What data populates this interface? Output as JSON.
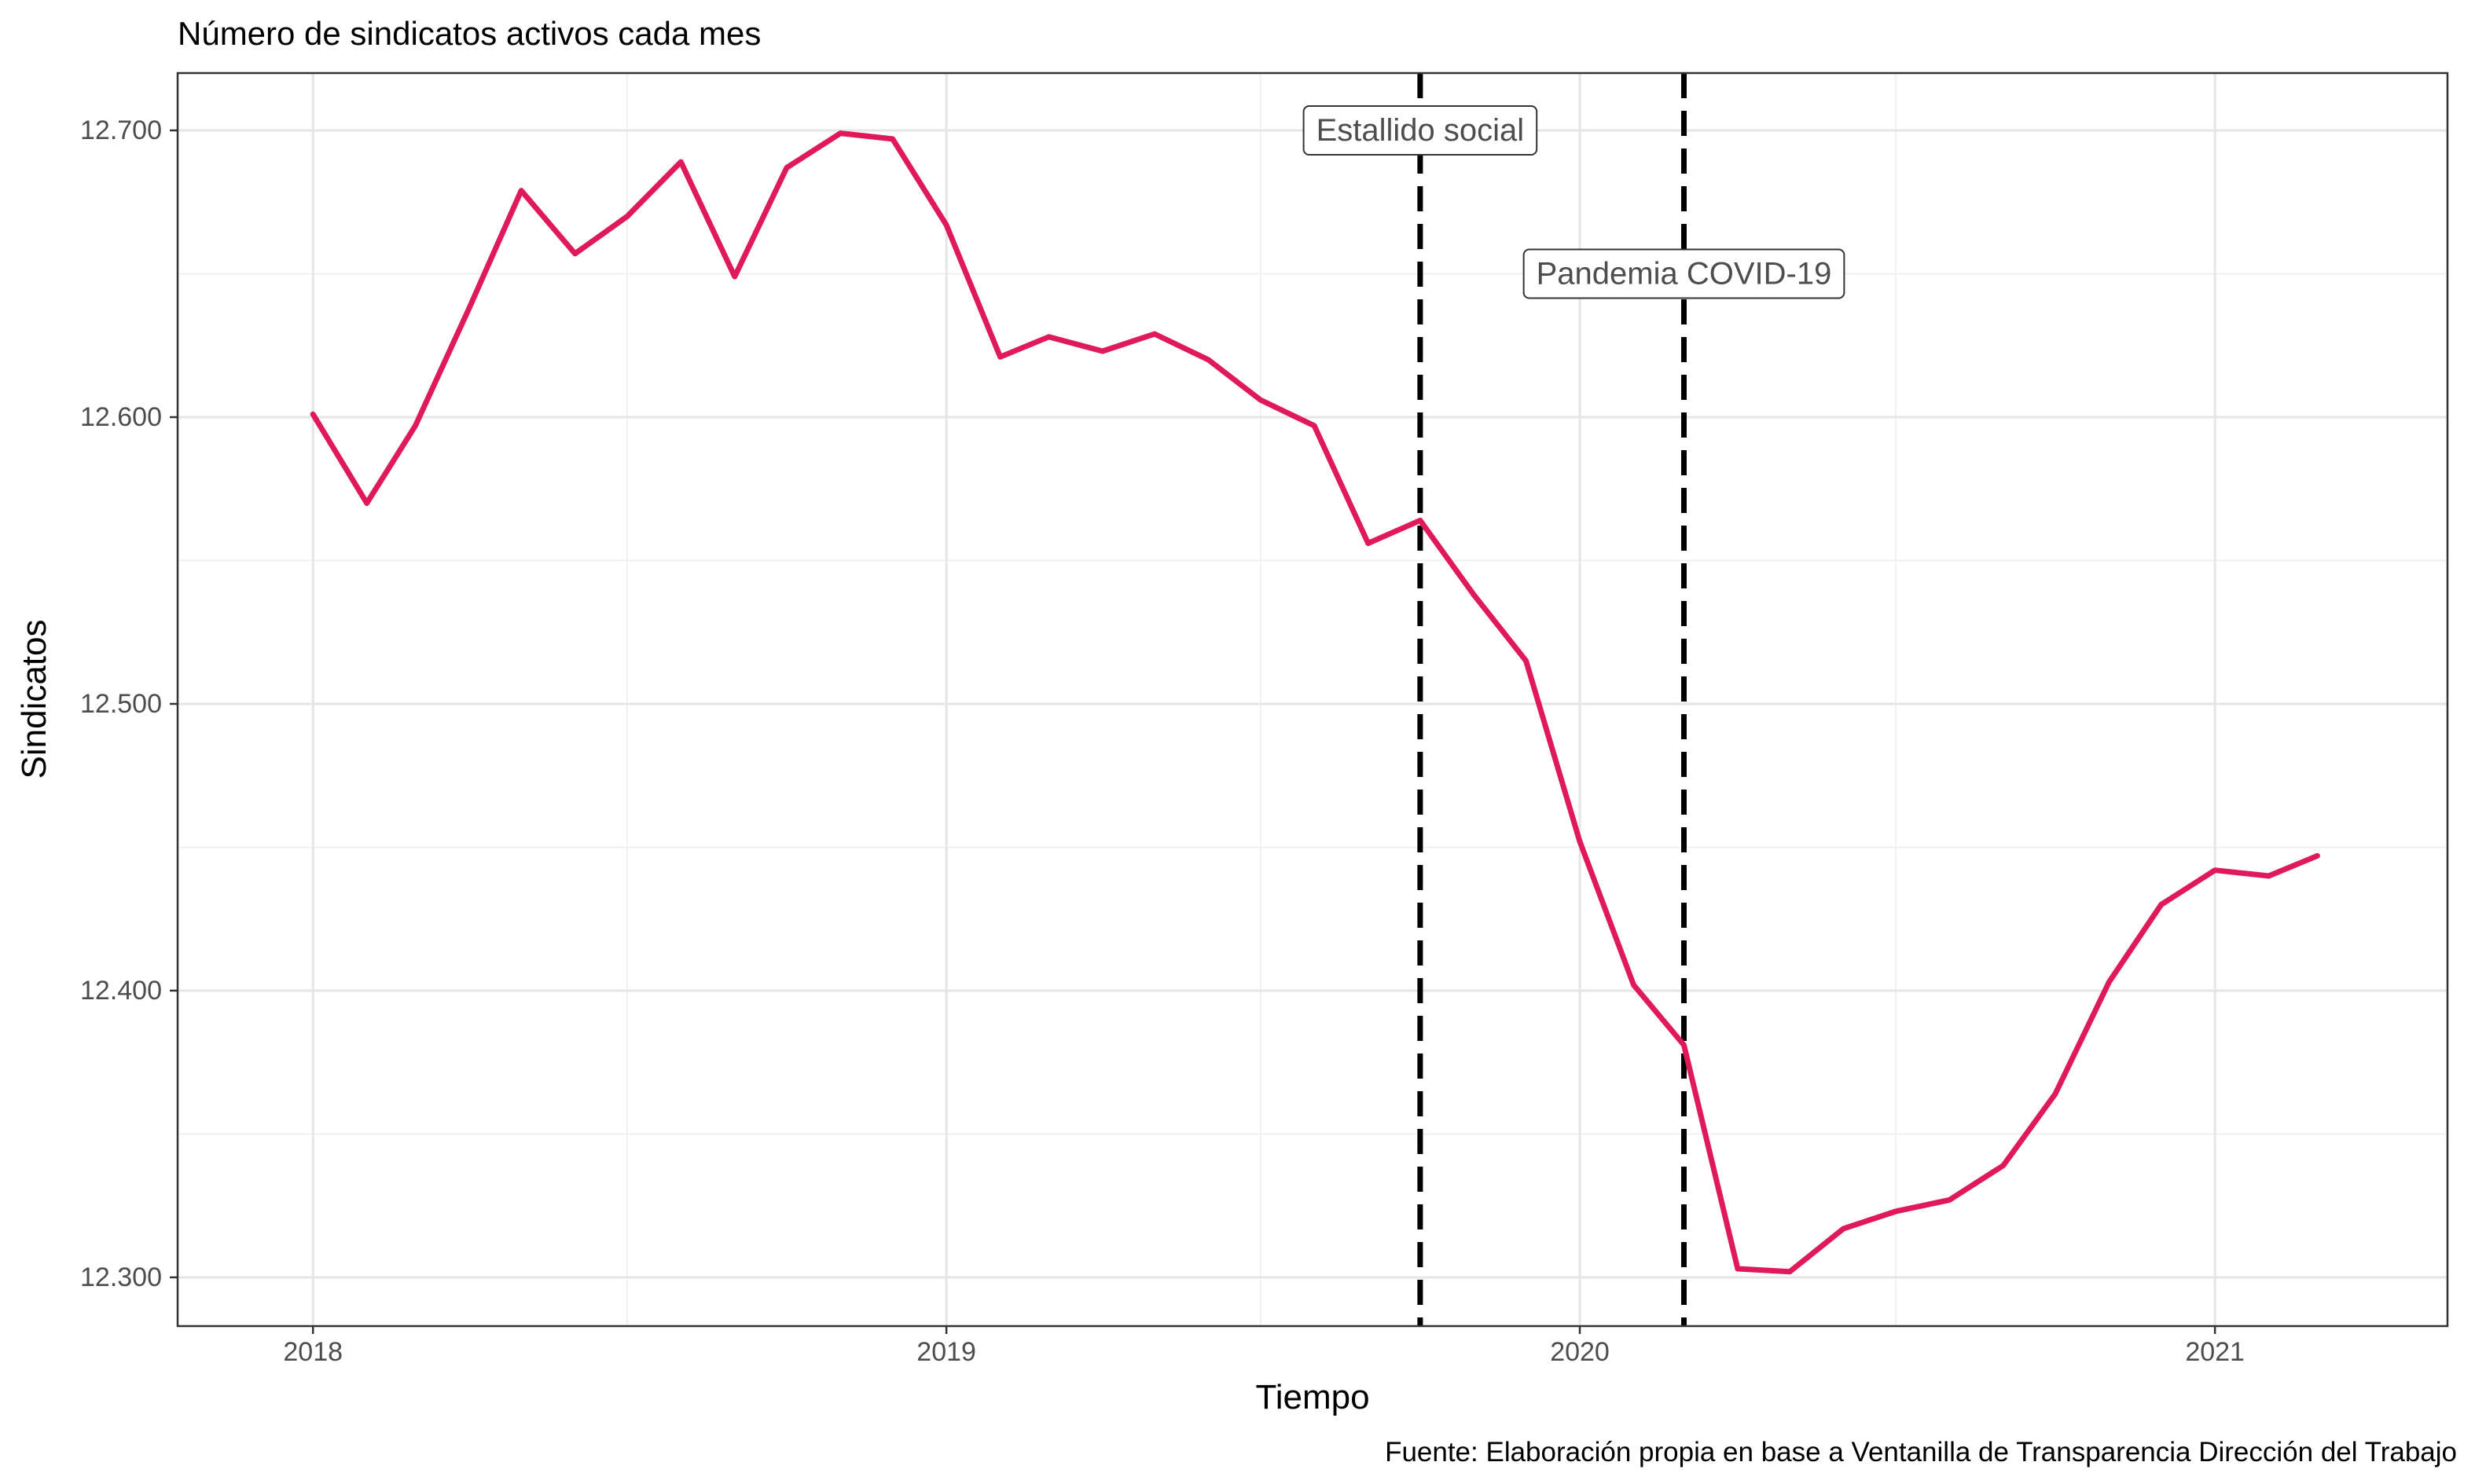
{
  "chart_data": {
    "type": "line",
    "title": "Número de sindicatos activos cada mes",
    "xlabel": "Tiempo",
    "ylabel": "Sindicatos",
    "caption": "Fuente: Elaboración propia en base a Ventanilla de Transparencia Dirección del Trabajo",
    "xlim": [
      "2017-10-15",
      "2021-05-15"
    ],
    "ylim": [
      12283,
      12720
    ],
    "x_ticks": [
      {
        "date": "2018-01-01",
        "label": "2018"
      },
      {
        "date": "2019-01-01",
        "label": "2019"
      },
      {
        "date": "2020-01-01",
        "label": "2020"
      },
      {
        "date": "2021-01-01",
        "label": "2021"
      }
    ],
    "x_minor_ticks": [
      "2018-07-01",
      "2019-07-01",
      "2020-07-01"
    ],
    "y_ticks": [
      {
        "value": 12300,
        "label": "12.300"
      },
      {
        "value": 12400,
        "label": "12.400"
      },
      {
        "value": 12500,
        "label": "12.500"
      },
      {
        "value": 12600,
        "label": "12.600"
      },
      {
        "value": 12700,
        "label": "12.700"
      }
    ],
    "y_minor_ticks": [
      12350,
      12450,
      12550,
      12650
    ],
    "grid": true,
    "line_color": "#E0195A",
    "series": [
      {
        "x": [
          "2018-01-01",
          "2018-02-01",
          "2018-03-01",
          "2018-04-01",
          "2018-05-01",
          "2018-06-01",
          "2018-07-01",
          "2018-08-01",
          "2018-09-01",
          "2018-10-01",
          "2018-11-01",
          "2018-12-01",
          "2019-01-01",
          "2019-02-01",
          "2019-03-01",
          "2019-04-01",
          "2019-05-01",
          "2019-06-01",
          "2019-07-01",
          "2019-08-01",
          "2019-09-01",
          "2019-10-01",
          "2019-11-01",
          "2019-12-01",
          "2020-01-01",
          "2020-02-01",
          "2020-03-01",
          "2020-04-01",
          "2020-05-01",
          "2020-06-01",
          "2020-07-01",
          "2020-08-01",
          "2020-09-01",
          "2020-10-01",
          "2020-11-01",
          "2020-12-01",
          "2021-01-01",
          "2021-02-01",
          "2021-03-01"
        ],
        "values": [
          12601,
          12570,
          12597,
          12638,
          12679,
          12657,
          12670,
          12689,
          12649,
          12687,
          12699,
          12697,
          12667,
          12621,
          12628,
          12623,
          12629,
          12620,
          12606,
          12597,
          12556,
          12564,
          12538,
          12515,
          12452,
          12402,
          12381,
          12303,
          12302,
          12317,
          12323,
          12327,
          12339,
          12364,
          12403,
          12430,
          12442,
          12440,
          12447
        ]
      }
    ],
    "annotations": [
      {
        "date": "2019-10-01",
        "label": "Estallido social",
        "label_y": 12700
      },
      {
        "date": "2020-03-01",
        "label": "Pandemia COVID-19",
        "label_y": 12650
      }
    ]
  }
}
